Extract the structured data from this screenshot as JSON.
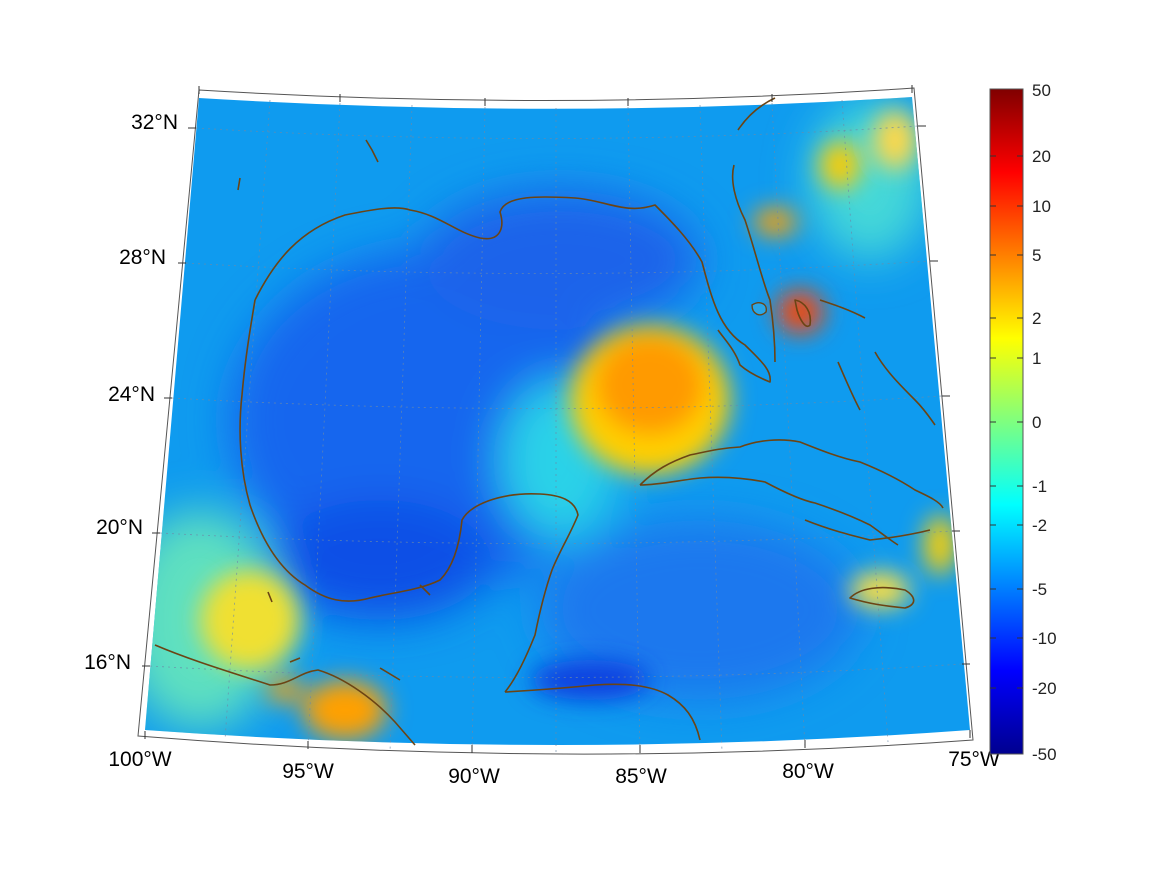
{
  "map": {
    "type": "projected-field-map",
    "region": "Gulf of Mexico and Caribbean",
    "projection_grid": {
      "longitude_ticks": [
        "100°W",
        "95°W",
        "90°W",
        "85°W",
        "80°W",
        "75°W"
      ],
      "latitude_ticks": [
        "16°N",
        "20°N",
        "24°N",
        "28°N",
        "32°N"
      ],
      "gridlines": "dotted",
      "coastline_color": "#6b4414"
    },
    "colorbar": {
      "ticks": [
        "50",
        "20",
        "10",
        "5",
        "2",
        "1",
        "0",
        "-1",
        "-2",
        "-5",
        "-10",
        "-20",
        "-50"
      ],
      "colormap": "jet",
      "scale": "symmetric nonlinear"
    },
    "features": [
      {
        "name": "positive-anomaly-south-of-florida",
        "level": "about 2 to 5",
        "color": "#ffa000"
      },
      {
        "name": "positive-anomaly-bahamas",
        "level": "about 5 to 10",
        "color": "#e8401a"
      },
      {
        "name": "positive-anomaly-south-mexico",
        "level": "about 2 to 5",
        "color": "#ffa000"
      },
      {
        "name": "negative-anomaly-central-gulf",
        "level": "about -5 to -10",
        "color": "#1a5cff"
      }
    ]
  }
}
